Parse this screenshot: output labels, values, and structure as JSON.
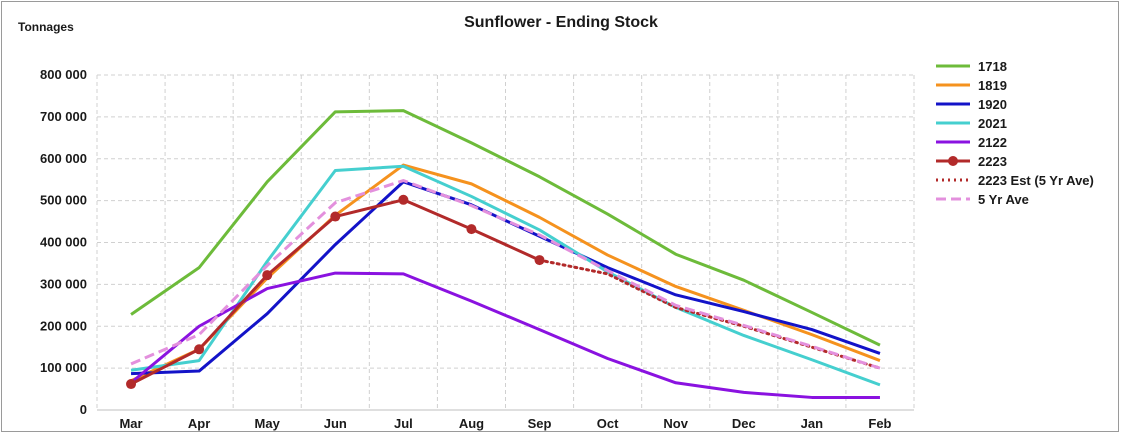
{
  "chart_data": {
    "type": "line",
    "title": "Sunflower - Ending Stock",
    "ylabel": "Tonnages",
    "xlabel": "",
    "categories": [
      "Mar",
      "Apr",
      "May",
      "Jun",
      "Jul",
      "Aug",
      "Sep",
      "Oct",
      "Nov",
      "Dec",
      "Jan",
      "Feb"
    ],
    "ylim": [
      0,
      800000
    ],
    "yticks": [
      0,
      100000,
      200000,
      300000,
      400000,
      500000,
      600000,
      700000,
      800000
    ],
    "ytick_labels": [
      "0",
      "100 000",
      "200 000",
      "300 000",
      "400 000",
      "500 000",
      "600 000",
      "700 000",
      "800 000"
    ],
    "grid": true,
    "legend_position": "right",
    "series": [
      {
        "name": "1718",
        "color": "#6dbb3a",
        "style": "solid",
        "markers": false,
        "values": [
          228000,
          340000,
          545000,
          712000,
          715000,
          638000,
          557000,
          468000,
          372000,
          310000,
          233000,
          155000
        ]
      },
      {
        "name": "1819",
        "color": "#f5921e",
        "style": "solid",
        "markers": false,
        "values": [
          70000,
          145000,
          315000,
          465000,
          585000,
          540000,
          460000,
          370000,
          295000,
          238000,
          180000,
          118000
        ]
      },
      {
        "name": "1920",
        "color": "#1313c8",
        "style": "solid",
        "markers": false,
        "values": [
          87000,
          93000,
          230000,
          395000,
          545000,
          490000,
          415000,
          340000,
          275000,
          235000,
          192000,
          135000
        ]
      },
      {
        "name": "2021",
        "color": "#45cfcf",
        "style": "solid",
        "markers": false,
        "values": [
          95000,
          118000,
          355000,
          572000,
          582000,
          510000,
          430000,
          330000,
          245000,
          178000,
          120000,
          60000
        ]
      },
      {
        "name": "2122",
        "color": "#8a12e0",
        "style": "solid",
        "markers": false,
        "values": [
          65000,
          200000,
          290000,
          327000,
          325000,
          260000,
          192000,
          123000,
          65000,
          42000,
          30000,
          30000
        ]
      },
      {
        "name": "2223",
        "color": "#b22a2a",
        "style": "solid",
        "markers": true,
        "values": [
          62000,
          145000,
          322000,
          462000,
          502000,
          432000,
          358000,
          null,
          null,
          null,
          null,
          null
        ]
      },
      {
        "name": "2223 Est (5 Yr Ave)",
        "color": "#b22a2a",
        "style": "dotted",
        "markers": false,
        "values": [
          null,
          null,
          null,
          null,
          null,
          null,
          358000,
          325000,
          245000,
          200000,
          150000,
          100000
        ]
      },
      {
        "name": "5 Yr Ave",
        "color": "#e390dd",
        "style": "dashed",
        "markers": false,
        "values": [
          110000,
          180000,
          345000,
          495000,
          548000,
          488000,
          418000,
          333000,
          250000,
          202000,
          152000,
          100000
        ]
      }
    ]
  }
}
